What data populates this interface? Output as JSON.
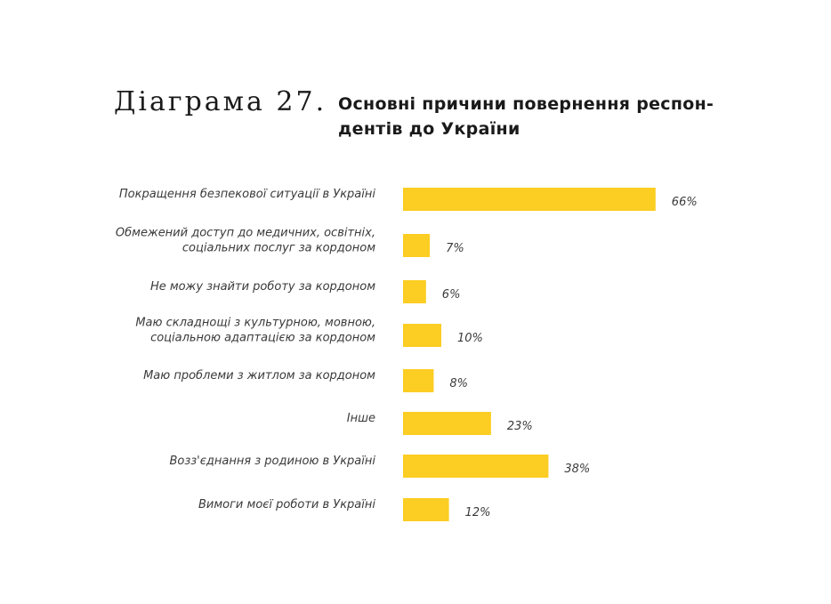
{
  "figure": {
    "number": "Діаграма 27.",
    "title_lines": [
      "Основні причини повернення респон-",
      "дентів до України"
    ]
  },
  "colors": {
    "bar": "#FCCD22",
    "text": "#3a3a3a"
  },
  "chart_data": {
    "type": "bar",
    "orientation": "horizontal",
    "title": "Основні причини повернення респондентів до України",
    "categories": [
      [
        "Покращення безпекової ситуації в Україні"
      ],
      [
        "Обмежений доступ до медичних, освітніх,",
        "соціальних послуг за кордоном"
      ],
      [
        "Не можу знайти роботу за кордоном"
      ],
      [
        "Маю складнощі з культурною, мовною,",
        "соціальною адаптацією за кордоном"
      ],
      [
        "Маю проблеми з житлом за кордоном"
      ],
      [
        "Інше"
      ],
      [
        "Возз'єднання з родиною в Україні"
      ],
      [
        "Вимоги моєї роботи в Україні"
      ]
    ],
    "values": [
      66,
      7,
      6,
      10,
      8,
      23,
      38,
      12
    ],
    "value_labels": [
      "66%",
      "7%",
      "6%",
      "10%",
      "8%",
      "23%",
      "38%",
      "12%"
    ],
    "unit": "%",
    "xlim": [
      0,
      100
    ],
    "grid": false,
    "legend": "none"
  }
}
